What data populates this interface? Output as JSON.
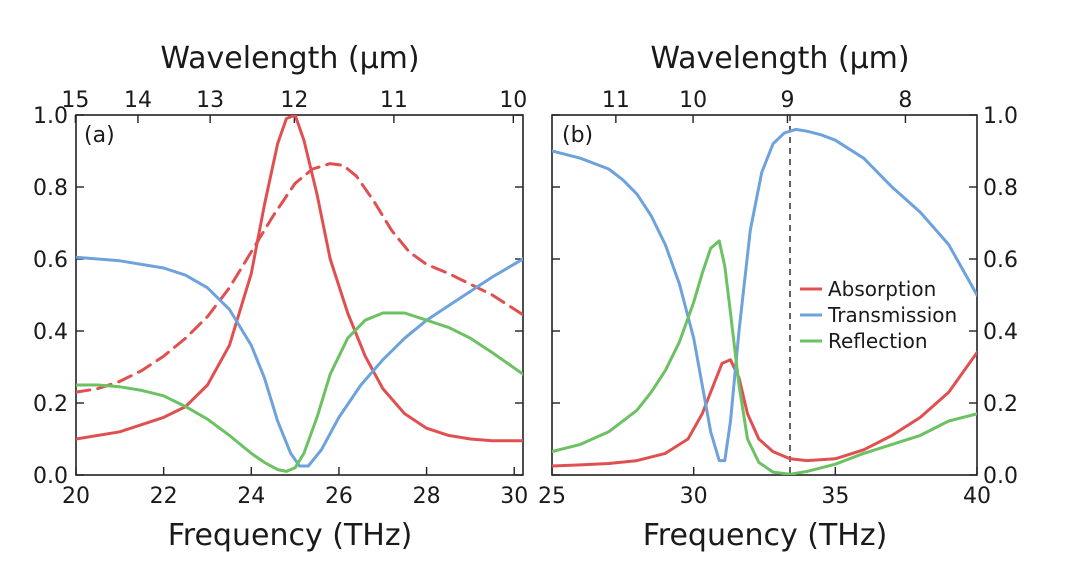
{
  "colors": {
    "absorption": "#e05050",
    "transmission": "#6ea2dc",
    "reflection": "#6cc163"
  },
  "chart_data": [
    {
      "type": "line",
      "panel_label": "(a)",
      "xlabel": "Frequency (THz)",
      "top_label": "Wavelength (μm)",
      "xlim": [
        20,
        30.2
      ],
      "ylim": [
        0,
        1.0
      ],
      "x_ticks": [
        20,
        22,
        24,
        26,
        28,
        30
      ],
      "y_ticks": [
        0.0,
        0.2,
        0.4,
        0.6,
        0.8,
        1.0
      ],
      "y_tick_labels": [
        "0.0",
        "0.2",
        "0.4",
        "0.6",
        "0.8",
        "1.0"
      ],
      "top_ticks": [
        15,
        14,
        13,
        12,
        11,
        10
      ],
      "series": [
        {
          "key": "absorption",
          "style": "solid",
          "x": [
            20,
            21,
            22,
            22.5,
            23,
            23.5,
            24,
            24.3,
            24.6,
            24.8,
            25,
            25.2,
            25.5,
            25.8,
            26.2,
            26.6,
            27,
            27.5,
            28,
            28.5,
            29,
            29.5,
            30.2
          ],
          "y": [
            0.1,
            0.12,
            0.16,
            0.19,
            0.25,
            0.36,
            0.56,
            0.75,
            0.92,
            0.99,
            1.0,
            0.93,
            0.78,
            0.6,
            0.45,
            0.33,
            0.24,
            0.17,
            0.13,
            0.11,
            0.1,
            0.095,
            0.095
          ]
        },
        {
          "key": "absorption",
          "style": "dashed",
          "x": [
            20,
            20.5,
            21,
            21.5,
            22,
            22.5,
            23,
            23.5,
            24,
            24.5,
            25,
            25.4,
            25.8,
            26.1,
            26.4,
            26.8,
            27.2,
            27.6,
            28,
            28.5,
            29,
            29.5,
            30.2
          ],
          "y": [
            0.23,
            0.24,
            0.26,
            0.29,
            0.33,
            0.38,
            0.44,
            0.52,
            0.62,
            0.72,
            0.81,
            0.85,
            0.865,
            0.86,
            0.83,
            0.76,
            0.68,
            0.62,
            0.585,
            0.56,
            0.53,
            0.5,
            0.445
          ]
        },
        {
          "key": "transmission",
          "style": "solid",
          "x": [
            20,
            21,
            22,
            22.5,
            23,
            23.5,
            24,
            24.3,
            24.6,
            24.9,
            25.1,
            25.3,
            25.6,
            26,
            26.5,
            27,
            27.5,
            28,
            28.5,
            29,
            29.5,
            30.2
          ],
          "y": [
            0.605,
            0.595,
            0.575,
            0.555,
            0.52,
            0.46,
            0.36,
            0.27,
            0.15,
            0.06,
            0.025,
            0.025,
            0.07,
            0.16,
            0.25,
            0.32,
            0.38,
            0.43,
            0.47,
            0.51,
            0.55,
            0.6
          ]
        },
        {
          "key": "reflection",
          "style": "solid",
          "x": [
            20,
            20.5,
            21,
            21.5,
            22,
            22.5,
            23,
            23.5,
            24,
            24.3,
            24.6,
            24.8,
            25,
            25.2,
            25.5,
            25.8,
            26.2,
            26.6,
            27,
            27.5,
            28,
            28.5,
            29,
            29.5,
            30.2
          ],
          "y": [
            0.25,
            0.25,
            0.245,
            0.235,
            0.22,
            0.19,
            0.155,
            0.11,
            0.06,
            0.035,
            0.015,
            0.01,
            0.02,
            0.06,
            0.16,
            0.28,
            0.38,
            0.43,
            0.45,
            0.45,
            0.43,
            0.41,
            0.38,
            0.34,
            0.28
          ]
        }
      ]
    },
    {
      "type": "line",
      "panel_label": "(b)",
      "xlabel": "Frequency (THz)",
      "top_label": "Wavelength (μm)",
      "xlim": [
        25,
        40
      ],
      "ylim": [
        0,
        1.0
      ],
      "x_ticks": [
        25,
        30,
        35,
        40
      ],
      "y_ticks": [
        0.0,
        0.2,
        0.4,
        0.6,
        0.8,
        1.0
      ],
      "y_tick_labels": [
        "0.0",
        "0.2",
        "0.4",
        "0.6",
        "0.8",
        "1.0"
      ],
      "top_ticks": [
        11,
        10,
        9,
        8
      ],
      "vline_x": 33.4,
      "legend": [
        "Absorption",
        "Transmission",
        "Reflection"
      ],
      "series": [
        {
          "key": "absorption",
          "style": "solid",
          "x": [
            25,
            26,
            27,
            28,
            29,
            29.8,
            30.3,
            30.7,
            31,
            31.3,
            31.6,
            31.9,
            32.3,
            32.8,
            33.4,
            34,
            35,
            36,
            37,
            38,
            39,
            40
          ],
          "y": [
            0.025,
            0.028,
            0.032,
            0.04,
            0.06,
            0.1,
            0.17,
            0.25,
            0.31,
            0.32,
            0.27,
            0.17,
            0.1,
            0.065,
            0.045,
            0.04,
            0.045,
            0.07,
            0.11,
            0.16,
            0.23,
            0.34
          ]
        },
        {
          "key": "transmission",
          "style": "solid",
          "x": [
            25,
            26,
            27,
            27.5,
            28,
            28.5,
            29,
            29.5,
            30,
            30.3,
            30.6,
            30.9,
            31.1,
            31.3,
            31.6,
            32,
            32.4,
            32.8,
            33.2,
            33.6,
            34,
            34.5,
            35,
            36,
            37,
            38,
            39,
            40
          ],
          "y": [
            0.9,
            0.88,
            0.85,
            0.82,
            0.78,
            0.72,
            0.64,
            0.53,
            0.38,
            0.25,
            0.12,
            0.04,
            0.04,
            0.15,
            0.4,
            0.68,
            0.84,
            0.92,
            0.95,
            0.96,
            0.955,
            0.945,
            0.93,
            0.88,
            0.8,
            0.73,
            0.64,
            0.5
          ]
        },
        {
          "key": "reflection",
          "style": "solid",
          "x": [
            25,
            26,
            27,
            28,
            28.5,
            29,
            29.5,
            30,
            30.3,
            30.6,
            30.9,
            31.1,
            31.3,
            31.6,
            31.9,
            32.3,
            32.8,
            33.4,
            34,
            35,
            36,
            37,
            38,
            39,
            40
          ],
          "y": [
            0.065,
            0.085,
            0.12,
            0.18,
            0.23,
            0.29,
            0.37,
            0.48,
            0.56,
            0.63,
            0.65,
            0.58,
            0.45,
            0.25,
            0.1,
            0.035,
            0.008,
            0.002,
            0.01,
            0.03,
            0.06,
            0.085,
            0.11,
            0.15,
            0.17
          ]
        }
      ]
    }
  ]
}
